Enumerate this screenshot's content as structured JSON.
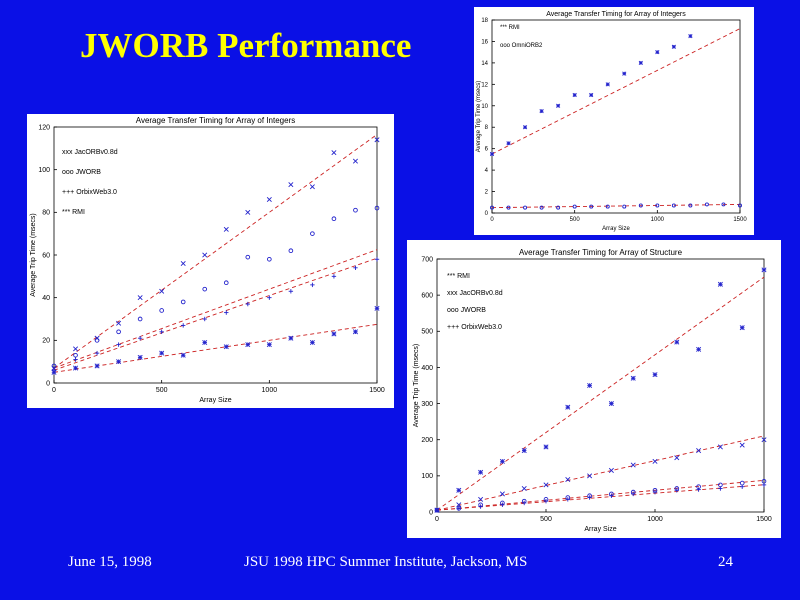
{
  "slide": {
    "title": "JWORB Performance",
    "footer_date": "June 15,  1998",
    "footer_event": "JSU 1998 HPC Summer Institute, Jackson, MS",
    "page_number": "24",
    "background_color": "#0a10e6",
    "title_color": "#ffff00"
  },
  "chart_data": [
    {
      "type": "scatter",
      "title": "Average Transfer Timing for Array of Integers",
      "xlabel": "Array Size",
      "ylabel": "Average Trip Time (msecs)",
      "xlim": [
        0,
        1500
      ],
      "ylim": [
        0,
        120
      ],
      "xticks": [
        0,
        500,
        1000,
        1500
      ],
      "yticks": [
        0,
        20,
        40,
        60,
        80,
        100,
        120
      ],
      "legend": "top-left",
      "grid": false,
      "series": [
        {
          "name": "JacORBv0.8d",
          "marker": "x",
          "fit": [
            7,
            0.073
          ],
          "x": [
            0,
            100,
            200,
            300,
            400,
            500,
            600,
            700,
            800,
            900,
            1000,
            1100,
            1200,
            1300,
            1400,
            1500
          ],
          "y": [
            7,
            16,
            21,
            28,
            40,
            43,
            56,
            60,
            72,
            80,
            86,
            93,
            92,
            108,
            104,
            114
          ]
        },
        {
          "name": "JWORB",
          "marker": "o",
          "fit": [
            7,
            0.037
          ],
          "x": [
            0,
            100,
            200,
            300,
            400,
            500,
            600,
            700,
            800,
            900,
            1000,
            1100,
            1200,
            1300,
            1400,
            1500
          ],
          "y": [
            8,
            13,
            20,
            24,
            30,
            34,
            38,
            44,
            47,
            59,
            58,
            62,
            70,
            77,
            81,
            82
          ]
        },
        {
          "name": "OrbixWeb3.0",
          "marker": "+",
          "fit": [
            6,
            0.035
          ],
          "x": [
            0,
            100,
            200,
            300,
            400,
            500,
            600,
            700,
            800,
            900,
            1000,
            1100,
            1200,
            1300,
            1400,
            1500
          ],
          "y": [
            6,
            11,
            14,
            18,
            21,
            24,
            27,
            30,
            33,
            37,
            40,
            43,
            46,
            50,
            54,
            58
          ]
        },
        {
          "name": "RMI",
          "marker": "*",
          "fit": [
            5,
            0.015
          ],
          "x": [
            0,
            100,
            200,
            300,
            400,
            500,
            600,
            700,
            800,
            900,
            1000,
            1100,
            1200,
            1300,
            1400,
            1500
          ],
          "y": [
            5,
            7,
            8,
            10,
            12,
            14,
            13,
            19,
            17,
            18,
            18,
            21,
            19,
            23,
            24,
            35
          ]
        }
      ]
    },
    {
      "type": "scatter",
      "title": "Average Transfer Timing for Array of Integers",
      "xlabel": "Array Size",
      "ylabel": "Average Trip Time (msecs)",
      "xlim": [
        0,
        1500
      ],
      "ylim": [
        0,
        18
      ],
      "xticks": [
        0,
        500,
        1000,
        1500
      ],
      "yticks": [
        0,
        2,
        4,
        6,
        8,
        10,
        12,
        14,
        16,
        18
      ],
      "legend": "top-left",
      "grid": false,
      "series": [
        {
          "name": "RMI",
          "marker": "*",
          "fit": [
            5.5,
            0.0078
          ],
          "x": [
            0,
            100,
            200,
            300,
            400,
            500,
            600,
            700,
            800,
            900,
            1000,
            1100,
            1200
          ],
          "y": [
            5.5,
            6.5,
            8,
            9.5,
            10,
            11,
            11,
            12,
            13,
            14,
            15,
            15.5,
            16.5
          ]
        },
        {
          "name": "OmniORB2",
          "marker": "o",
          "fit": [
            0.5,
            0.0002
          ],
          "x": [
            0,
            100,
            200,
            300,
            400,
            500,
            600,
            700,
            800,
            900,
            1000,
            1100,
            1200,
            1300,
            1400,
            1500
          ],
          "y": [
            0.5,
            0.5,
            0.5,
            0.5,
            0.5,
            0.6,
            0.6,
            0.6,
            0.6,
            0.7,
            0.7,
            0.7,
            0.7,
            0.8,
            0.8,
            0.7
          ]
        }
      ]
    },
    {
      "type": "scatter",
      "title": "Average Transfer Timing for Array of Structure",
      "xlabel": "Array Size",
      "ylabel": "Average Trip Time (msecs)",
      "xlim": [
        0,
        1500
      ],
      "ylim": [
        0,
        700
      ],
      "xticks": [
        0,
        500,
        1000,
        1500
      ],
      "yticks": [
        0,
        100,
        200,
        300,
        400,
        500,
        600,
        700
      ],
      "legend": "top-left",
      "grid": false,
      "series": [
        {
          "name": "RMI",
          "marker": "*",
          "fit": [
            5,
            0.43
          ],
          "x": [
            0,
            100,
            200,
            300,
            400,
            500,
            600,
            700,
            800,
            900,
            1000,
            1100,
            1200,
            1300,
            1400,
            1500
          ],
          "y": [
            5,
            60,
            110,
            140,
            170,
            180,
            290,
            350,
            300,
            370,
            380,
            470,
            450,
            630,
            510,
            670
          ]
        },
        {
          "name": "JacORBv0.8d",
          "marker": "x",
          "fit": [
            5,
            0.137
          ],
          "x": [
            0,
            100,
            200,
            300,
            400,
            500,
            600,
            700,
            800,
            900,
            1000,
            1100,
            1200,
            1300,
            1400,
            1500
          ],
          "y": [
            5,
            20,
            35,
            50,
            65,
            75,
            90,
            100,
            115,
            130,
            140,
            150,
            170,
            180,
            185,
            200
          ]
        },
        {
          "name": "JWORB",
          "marker": "o",
          "fit": [
            5,
            0.055
          ],
          "x": [
            0,
            100,
            200,
            300,
            400,
            500,
            600,
            700,
            800,
            900,
            1000,
            1100,
            1200,
            1300,
            1400,
            1500
          ],
          "y": [
            5,
            10,
            20,
            25,
            30,
            35,
            40,
            45,
            50,
            55,
            60,
            65,
            70,
            75,
            80,
            85
          ]
        },
        {
          "name": "OrbixWeb3.0",
          "marker": "+",
          "fit": [
            5,
            0.047
          ],
          "x": [
            0,
            100,
            200,
            300,
            400,
            500,
            600,
            700,
            800,
            900,
            1000,
            1100,
            1200,
            1300,
            1400,
            1500
          ],
          "y": [
            5,
            10,
            15,
            20,
            25,
            30,
            35,
            40,
            45,
            50,
            55,
            60,
            62,
            65,
            70,
            75
          ]
        }
      ]
    }
  ]
}
